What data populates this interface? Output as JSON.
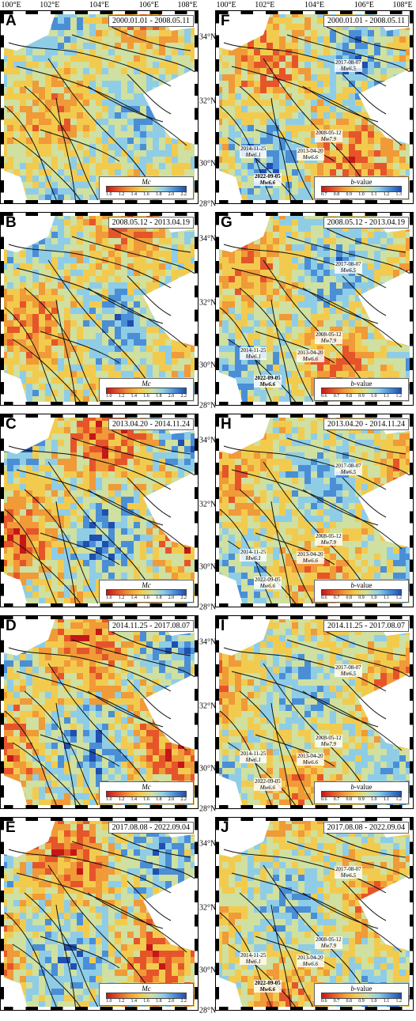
{
  "x_axis_labels": [
    "100°E",
    "102°E",
    "104°E",
    "106°E",
    "108°E"
  ],
  "y_axis_labels": [
    "34°N",
    "32°N",
    "30°N",
    "28°N"
  ],
  "colorbar_colors": [
    "#c41818",
    "#e6552a",
    "#f09a38",
    "#f2cb4e",
    "#cfe0a0",
    "#8fcde6",
    "#4a8fd6",
    "#1f4fb0"
  ],
  "mc_colorbar": {
    "title": "Mc",
    "ticks": [
      "1.0",
      "1.2",
      "1.4",
      "1.6",
      "1.8",
      "2.0",
      "2.2"
    ]
  },
  "b_colorbar": {
    "title_prefix": "b",
    "title_suffix": "-value"
  },
  "panels": [
    {
      "label": "A",
      "period": "2000.01.01 - 2008.05.11",
      "quantity": "Mc",
      "ticks": [
        "1.0",
        "1.2",
        "1.4",
        "1.6",
        "1.8",
        "2.0",
        "2.2"
      ],
      "palette_bias": 0.55,
      "events": []
    },
    {
      "label": "B",
      "period": "2008.05.12 - 2013.04.19",
      "quantity": "Mc",
      "ticks": [
        "1.0",
        "1.2",
        "1.4",
        "1.6",
        "1.8",
        "2.0",
        "2.2"
      ],
      "palette_bias": 0.35,
      "events": []
    },
    {
      "label": "C",
      "period": "2013.04.20 - 2014.11.24",
      "quantity": "Mc",
      "ticks": [
        "1.0",
        "1.2",
        "1.4",
        "1.6",
        "1.8",
        "2.0",
        "2.2"
      ],
      "palette_bias": 0.15,
      "events": []
    },
    {
      "label": "D",
      "period": "2014.11.25 - 2017.08.07",
      "quantity": "Mc",
      "ticks": [
        "1.0",
        "1.2",
        "1.4",
        "1.6",
        "1.8",
        "2.0",
        "2.2"
      ],
      "palette_bias": 0.15,
      "events": []
    },
    {
      "label": "E",
      "period": "2017.08.08 - 2022.09.04",
      "quantity": "Mc",
      "ticks": [
        "1.0",
        "1.2",
        "1.4",
        "1.6",
        "1.8",
        "2.0",
        "2.2"
      ],
      "palette_bias": 0.2,
      "events": []
    },
    {
      "label": "F",
      "period": "2000.01.01 - 2008.05.11",
      "quantity": "b-value",
      "ticks": [
        "0.7",
        "0.8",
        "0.9",
        "1.0",
        "1.1",
        "1.2",
        "1.3"
      ],
      "palette_bias": 0.25,
      "events": [
        {
          "date": "2017-08-07",
          "mag": "Mw6.5",
          "bold": false
        },
        {
          "date": "2008-05-12",
          "mag": "Mw7.9",
          "bold": false
        },
        {
          "date": "2014-11-25",
          "mag": "Mw6.1",
          "bold": false
        },
        {
          "date": "2013-04-20",
          "mag": "Mw6.6",
          "bold": false
        },
        {
          "date": "2022-09-05",
          "mag": "Mw6.6",
          "bold": true
        }
      ]
    },
    {
      "label": "G",
      "period": "2008.05.12 - 2013.04.19",
      "quantity": "b-value",
      "ticks": [
        "0.6",
        "0.7",
        "0.8",
        "0.9",
        "1.0",
        "1.1",
        "1.2"
      ],
      "palette_bias": 0.4,
      "events": [
        {
          "date": "2017-08-07",
          "mag": "Mw6.5",
          "bold": false
        },
        {
          "date": "2008-05-12",
          "mag": "Mw7.9",
          "bold": false
        },
        {
          "date": "2014-11-25",
          "mag": "Mw6.1",
          "bold": false
        },
        {
          "date": "2013-04-20",
          "mag": "Mw6.6",
          "bold": false
        },
        {
          "date": "2022-09-05",
          "mag": "Mw6.6",
          "bold": true
        }
      ]
    },
    {
      "label": "H",
      "period": "2013.04.20 - 2014.11.24",
      "quantity": "b-value",
      "ticks": [
        "0.6",
        "0.7",
        "0.8",
        "0.9",
        "1.0",
        "1.1",
        "1.2"
      ],
      "palette_bias": 0.45,
      "events": [
        {
          "date": "2017-08-07",
          "mag": "Mw6.5",
          "bold": false
        },
        {
          "date": "2008-05-12",
          "mag": "Mw7.9",
          "bold": false
        },
        {
          "date": "2014-11-25",
          "mag": "Mw6.1",
          "bold": false
        },
        {
          "date": "2013-04-20",
          "mag": "Mw6.6",
          "bold": false
        },
        {
          "date": "2022-09-05",
          "mag": "Mw6.6",
          "bold": false
        }
      ]
    },
    {
      "label": "I",
      "period": "2014.11.25 - 2017.08.07",
      "quantity": "b-value",
      "ticks": [
        "0.6",
        "0.7",
        "0.8",
        "0.9",
        "1.0",
        "1.1",
        "1.2"
      ],
      "palette_bias": 0.5,
      "events": [
        {
          "date": "2017-08-07",
          "mag": "Mw6.5",
          "bold": false
        },
        {
          "date": "2008-05-12",
          "mag": "Mw7.9",
          "bold": false
        },
        {
          "date": "2014-11-25",
          "mag": "Mw6.1",
          "bold": false
        },
        {
          "date": "2013-04-20",
          "mag": "Mw6.6",
          "bold": false
        },
        {
          "date": "2022-09-05",
          "mag": "Mw6.6",
          "bold": false
        }
      ]
    },
    {
      "label": "J",
      "period": "2017.08.08 - 2022.09.04",
      "quantity": "b-value",
      "ticks": [
        "0.6",
        "0.7",
        "0.8",
        "0.9",
        "1.0",
        "1.1",
        "1.2"
      ],
      "palette_bias": 0.55,
      "events": [
        {
          "date": "2017-08-07",
          "mag": "Mw6.5",
          "bold": false
        },
        {
          "date": "2008-05-12",
          "mag": "Mw7.9",
          "bold": false
        },
        {
          "date": "2014-11-25",
          "mag": "Mw6.1",
          "bold": false
        },
        {
          "date": "2013-04-20",
          "mag": "Mw6.6",
          "bold": false
        },
        {
          "date": "2022-09-05",
          "mag": "Mw6.6",
          "bold": true
        }
      ]
    }
  ]
}
